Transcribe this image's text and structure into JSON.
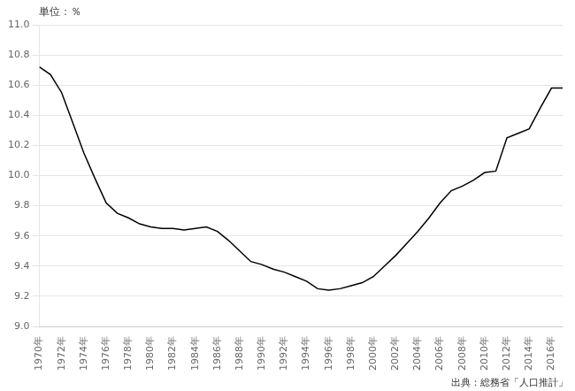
{
  "chart_data": {
    "type": "line",
    "annotations": [
      "単位：％",
      "出典：総務省「人口推計」"
    ],
    "x": [
      1970,
      1971,
      1972,
      1973,
      1974,
      1975,
      1976,
      1977,
      1978,
      1979,
      1980,
      1981,
      1982,
      1983,
      1984,
      1985,
      1986,
      1987,
      1988,
      1989,
      1990,
      1991,
      1992,
      1993,
      1994,
      1995,
      1996,
      1997,
      1998,
      1999,
      2000,
      2001,
      2002,
      2003,
      2004,
      2005,
      2006,
      2007,
      2008,
      2009,
      2010,
      2011,
      2012,
      2013,
      2014,
      2015,
      2016,
      2017
    ],
    "values": [
      10.72,
      10.67,
      10.55,
      10.35,
      10.15,
      9.98,
      9.82,
      9.75,
      9.72,
      9.68,
      9.66,
      9.65,
      9.65,
      9.64,
      9.65,
      9.66,
      9.63,
      9.57,
      9.5,
      9.43,
      9.41,
      9.38,
      9.36,
      9.33,
      9.3,
      9.25,
      9.24,
      9.25,
      9.27,
      9.29,
      9.33,
      9.4,
      9.47,
      9.55,
      9.63,
      9.72,
      9.82,
      9.9,
      9.93,
      9.97,
      10.02,
      10.03,
      10.25,
      10.28,
      10.31,
      10.45,
      10.58,
      10.58
    ],
    "color": "#000000",
    "marker": "none",
    "xlim": [
      1970,
      2017
    ],
    "xticks": [
      {
        "value": 1970,
        "label": "1970年"
      },
      {
        "value": 1972,
        "label": "1972年"
      },
      {
        "value": 1974,
        "label": "1974年"
      },
      {
        "value": 1976,
        "label": "1976年"
      },
      {
        "value": 1978,
        "label": "1978年"
      },
      {
        "value": 1980,
        "label": "1980年"
      },
      {
        "value": 1982,
        "label": "1982年"
      },
      {
        "value": 1984,
        "label": "1984年"
      },
      {
        "value": 1986,
        "label": "1986年"
      },
      {
        "value": 1988,
        "label": "1988年"
      },
      {
        "value": 1990,
        "label": "1990年"
      },
      {
        "value": 1992,
        "label": "1992年"
      },
      {
        "value": 1994,
        "label": "1994年"
      },
      {
        "value": 1996,
        "label": "1996年"
      },
      {
        "value": 1998,
        "label": "1998年"
      },
      {
        "value": 2000,
        "label": "2000年"
      },
      {
        "value": 2002,
        "label": "2002年"
      },
      {
        "value": 2004,
        "label": "2004年"
      },
      {
        "value": 2006,
        "label": "2006年"
      },
      {
        "value": 2008,
        "label": "2008年"
      },
      {
        "value": 2010,
        "label": "2010年"
      },
      {
        "value": 2012,
        "label": "2012年"
      },
      {
        "value": 2014,
        "label": "2014年"
      },
      {
        "value": 2016,
        "label": "2016年"
      }
    ],
    "ylim": [
      9.0,
      11.0
    ],
    "yticks": [
      {
        "value": 9,
        "label": "9.0"
      },
      9.2,
      9.4,
      9.6,
      9.8,
      {
        "value": 10,
        "label": "10.0"
      },
      10.2,
      10.4,
      10.6,
      10.8,
      {
        "value": 11,
        "label": "11.0"
      }
    ],
    "grid": "y"
  }
}
